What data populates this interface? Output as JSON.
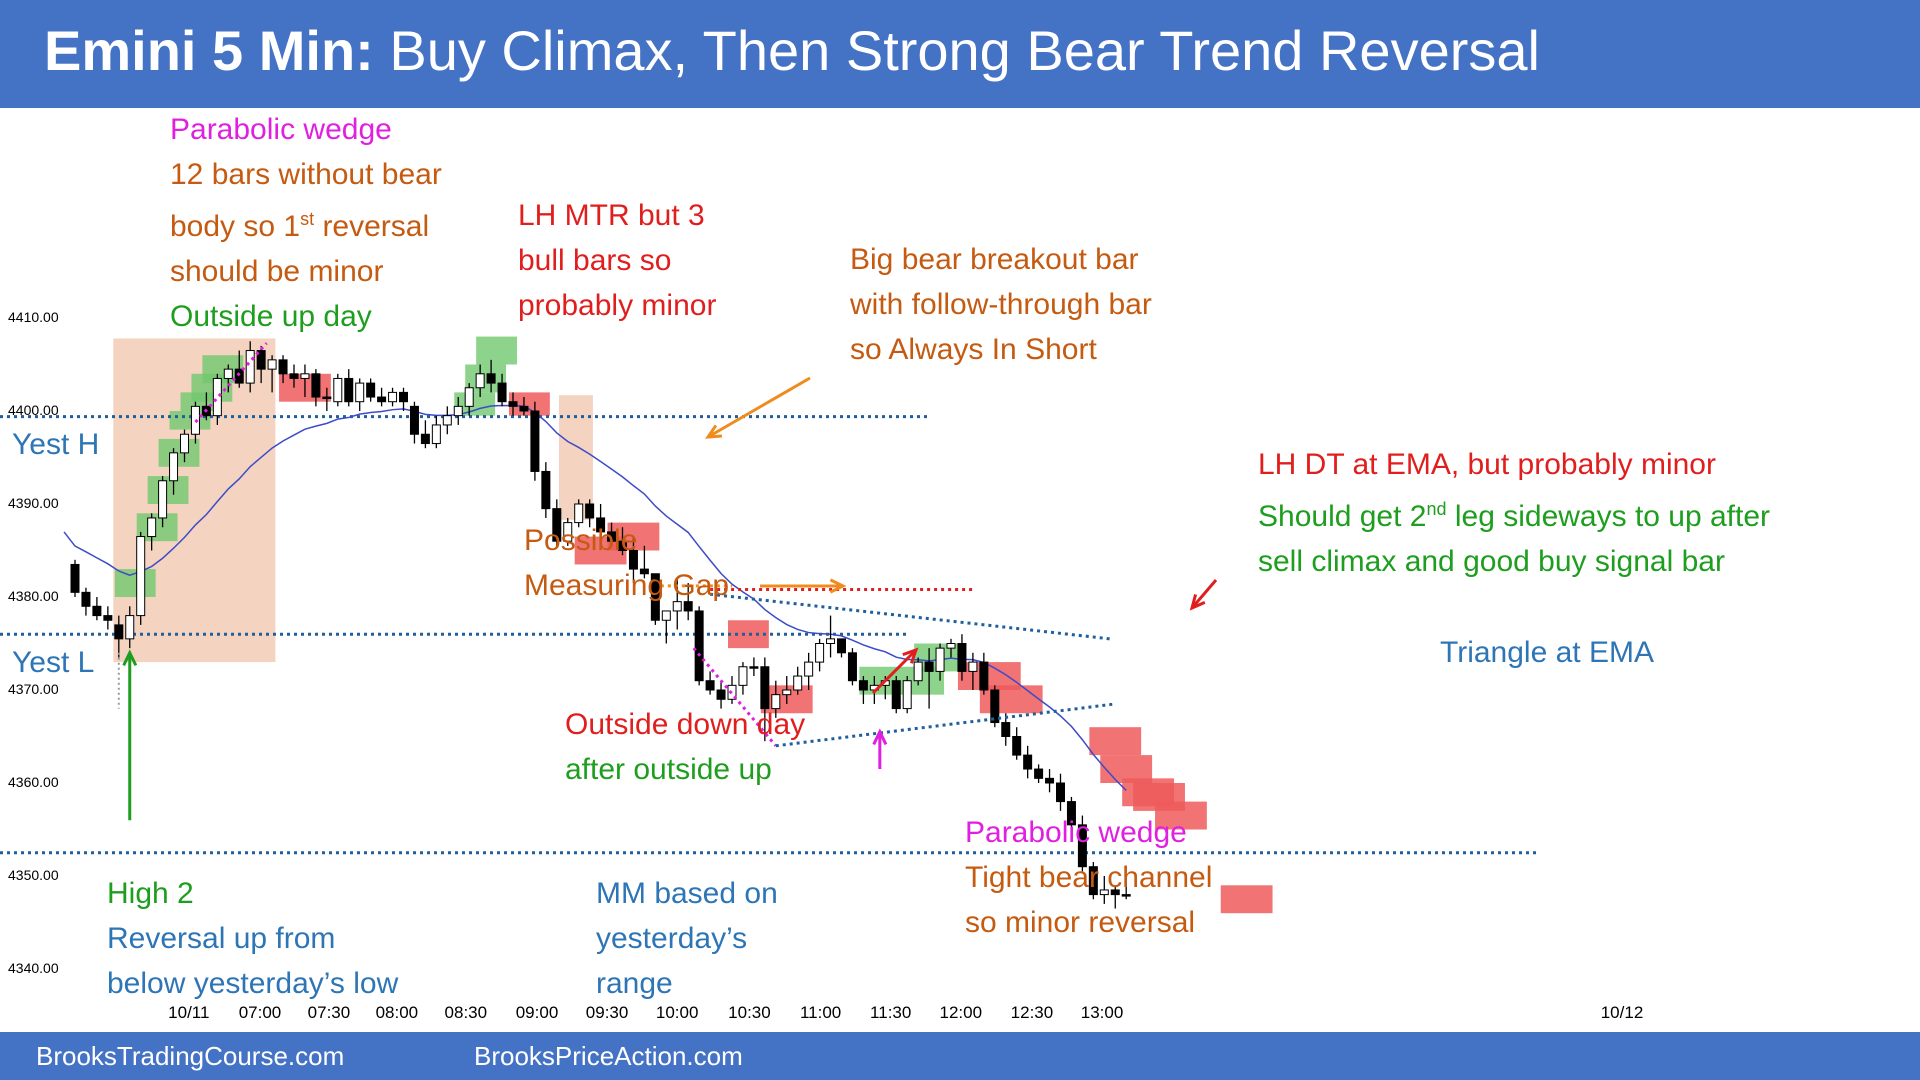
{
  "header": {
    "title_bold": "Emini 5 Min:",
    "title_rest": "Buy Climax, Then Strong Bear Trend Reversal"
  },
  "footer": {
    "left": "BrooksTradingCourse.com",
    "right": "BrooksPriceAction.com"
  },
  "levels": {
    "yest_h": "Yest H",
    "yest_l": "Yest L"
  },
  "colors": {
    "header_bg": "#4472c4",
    "bull_box": "#70c86e",
    "bear_box": "#ee5a5a",
    "climax_zone": "#f4d4c0",
    "ema": "#3c4cc8",
    "level_line": "#1f5f9a",
    "magenta": "#e020e0",
    "orange": "#f08c1e",
    "red": "#e01e1e",
    "green": "#1e9e1e",
    "blue_text": "#2e75b6",
    "brown_text": "#c55a11"
  },
  "annotations": {
    "parabolic_top": {
      "l1": "Parabolic wedge",
      "l2": "12 bars without bear",
      "l3a": "body so 1",
      "l3sup": "st",
      "l3b": " reversal",
      "l4": "should be minor",
      "l5": "Outside up day"
    },
    "lh_mtr": {
      "l1": "LH MTR but 3",
      "l2": "bull bars so",
      "l3": "probably minor"
    },
    "big_bear": {
      "l1": "Big bear breakout bar",
      "l2": "with follow-through bar",
      "l3": "so Always In Short"
    },
    "lh_dt": {
      "l1": "LH DT at EMA, but probably minor",
      "l2a": "Should get 2",
      "l2sup": "nd",
      "l2b": " leg sideways to up after",
      "l3": "sell climax and good buy signal bar"
    },
    "measuring_gap": {
      "l1": "Possible",
      "l2": "Measuring Gap"
    },
    "triangle": "Triangle at EMA",
    "outside_down": {
      "l1": "Outside down day",
      "l2": "after outside up"
    },
    "parabolic_bottom": {
      "l1": "Parabolic wedge",
      "l2": "Tight bear channel",
      "l3": "so minor reversal"
    },
    "high2": {
      "l1": "High 2",
      "l2": "Reversal up from",
      "l3": "below yesterday’s low"
    },
    "mm": {
      "l1": "MM based on",
      "l2": "yesterday’s",
      "l3": "range"
    }
  },
  "chart_data": {
    "type": "candlestick",
    "title": "Emini 5 Min: Buy Climax, Then Strong Bear Trend Reversal",
    "y_ticks": [
      "4410.00",
      "4400.00",
      "4390.00",
      "4380.00",
      "4370.00",
      "4360.00",
      "4350.00",
      "4340.00"
    ],
    "ylim": [
      4336,
      4418
    ],
    "x_ticks": [
      "10/11",
      "07:00",
      "07:30",
      "08:00",
      "08:30",
      "09:00",
      "09:30",
      "10:00",
      "10:30",
      "11:00",
      "11:30",
      "12:00",
      "12:30",
      "13:00",
      "10/12"
    ],
    "levels": {
      "yesterday_high": 4399.4,
      "yesterday_low": 4376.0,
      "measured_move": 4352.5
    },
    "ohlc": [
      [
        4383.5,
        4384,
        4380,
        4380.5
      ],
      [
        4380.5,
        4381,
        4378,
        4379
      ],
      [
        4379,
        4380,
        4377.5,
        4378
      ],
      [
        4378,
        4379,
        4376.5,
        4377.5
      ],
      [
        4377,
        4378,
        4373.5,
        4375.5
      ],
      [
        4375.5,
        4379,
        4374.5,
        4378
      ],
      [
        4378,
        4387,
        4377,
        4386.5
      ],
      [
        4386.5,
        4389,
        4385,
        4388.5
      ],
      [
        4388.5,
        4393,
        4387.5,
        4392.5
      ],
      [
        4392.5,
        4396,
        4391,
        4395.5
      ],
      [
        4395.5,
        4398,
        4394.5,
        4397.5
      ],
      [
        4397.5,
        4401,
        4396.5,
        4400.5
      ],
      [
        4400.5,
        4402,
        4399,
        4399.5
      ],
      [
        4399.5,
        4404,
        4398.5,
        4403.5
      ],
      [
        4403.5,
        4405,
        4402,
        4404.5
      ],
      [
        4404.5,
        4406.5,
        4402.5,
        4403
      ],
      [
        4403,
        4407.5,
        4402,
        4406.5
      ],
      [
        4406.5,
        4407,
        4403,
        4404.5
      ],
      [
        4404.5,
        4406,
        4402,
        4405.5
      ],
      [
        4405.5,
        4406,
        4403,
        4404
      ],
      [
        4404,
        4405,
        4402.5,
        4403.5
      ],
      [
        4403.5,
        4405,
        4401.5,
        4404
      ],
      [
        4404,
        4404.5,
        4400.5,
        4401.5
      ],
      [
        4401.5,
        4402.5,
        4400,
        4401.5
      ],
      [
        4401,
        4404,
        4400.5,
        4403.5
      ],
      [
        4403.5,
        4404.5,
        4400.5,
        4401
      ],
      [
        4401,
        4403.5,
        4400,
        4403
      ],
      [
        4403,
        4403.5,
        4401,
        4401.5
      ],
      [
        4401.5,
        4402.5,
        4400.5,
        4401
      ],
      [
        4401,
        4402.5,
        4400.5,
        4402
      ],
      [
        4402,
        4402.5,
        4400,
        4401
      ],
      [
        4400.5,
        4401,
        4396.5,
        4397.5
      ],
      [
        4397.5,
        4399,
        4396,
        4396.5
      ],
      [
        4396.5,
        4399.5,
        4396,
        4398.5
      ],
      [
        4398.5,
        4400.5,
        4397.5,
        4399.5
      ],
      [
        4399.5,
        4401.5,
        4398.5,
        4400.5
      ],
      [
        4400.5,
        4403,
        4399.5,
        4402.5
      ],
      [
        4402.5,
        4405,
        4401.5,
        4404
      ],
      [
        4404,
        4405.5,
        4402,
        4403
      ],
      [
        4403,
        4404,
        4400.5,
        4401
      ],
      [
        4401,
        4402,
        4399.5,
        4400.5
      ],
      [
        4400.5,
        4401.5,
        4399.5,
        4400
      ],
      [
        4400,
        4401,
        4392.5,
        4393.5
      ],
      [
        4393.5,
        4394.5,
        4388.5,
        4389.5
      ],
      [
        4389.5,
        4390.5,
        4385.5,
        4386
      ],
      [
        4386,
        4388.5,
        4385.5,
        4388
      ],
      [
        4388,
        4390.5,
        4387.5,
        4390
      ],
      [
        4390,
        4390.5,
        4387.5,
        4388.5
      ],
      [
        4388.5,
        4390,
        4386.5,
        4387
      ],
      [
        4387,
        4388,
        4385.5,
        4386
      ],
      [
        4386,
        4387.5,
        4384.5,
        4385
      ],
      [
        4385,
        4386.5,
        4381.5,
        4383
      ],
      [
        4383,
        4385.5,
        4382,
        4382.5
      ],
      [
        4382.5,
        4382,
        4377,
        4377.5
      ],
      [
        4377.5,
        4378.5,
        4375,
        4378.5
      ],
      [
        4378.5,
        4382,
        4376.5,
        4379.5
      ],
      [
        4379.5,
        4381.5,
        4377.5,
        4378.5
      ],
      [
        4378.5,
        4379,
        4370.5,
        4371
      ],
      [
        4371,
        4372,
        4369.5,
        4370
      ],
      [
        4370,
        4371,
        4368,
        4369
      ],
      [
        4369,
        4371.5,
        4368.5,
        4370.5
      ],
      [
        4370.5,
        4373,
        4369.5,
        4372.5
      ],
      [
        4372.5,
        4373.5,
        4371.5,
        4372.5
      ],
      [
        4372.5,
        4373.5,
        4364.5,
        4368
      ],
      [
        4368,
        4371,
        4367,
        4369.5
      ],
      [
        4369.5,
        4371.5,
        4368.5,
        4370
      ],
      [
        4370,
        4372.5,
        4369.5,
        4371.5
      ],
      [
        4371.5,
        4374,
        4370,
        4373
      ],
      [
        4373,
        4375.5,
        4372,
        4375
      ],
      [
        4375,
        4378,
        4373.5,
        4375.5
      ],
      [
        4375.5,
        4375.5,
        4373.5,
        4374
      ],
      [
        4374,
        4374.5,
        4370.5,
        4371
      ],
      [
        4371,
        4371.5,
        4368.5,
        4370
      ],
      [
        4370,
        4371.5,
        4368.5,
        4370.5
      ],
      [
        4370.5,
        4371.5,
        4369,
        4371
      ],
      [
        4371,
        4371.5,
        4367.5,
        4368
      ],
      [
        4368,
        4371.5,
        4367.5,
        4371
      ],
      [
        4371,
        4373.5,
        4370.5,
        4373
      ],
      [
        4373,
        4374.5,
        4368,
        4372
      ],
      [
        4372,
        4375,
        4371,
        4374.5
      ],
      [
        4374.5,
        4375.5,
        4373.5,
        4375
      ],
      [
        4375,
        4376,
        4371,
        4372
      ],
      [
        4372,
        4374,
        4370,
        4373
      ],
      [
        4373,
        4374,
        4369.5,
        4370
      ],
      [
        4370,
        4370.5,
        4366,
        4366.5
      ],
      [
        4366.5,
        4367.5,
        4364,
        4365
      ],
      [
        4365,
        4366,
        4362.5,
        4363
      ],
      [
        4363,
        4364,
        4360.5,
        4361.5
      ],
      [
        4361.5,
        4362,
        4360,
        4360.5
      ],
      [
        4360.5,
        4361.5,
        4359,
        4360
      ],
      [
        4360,
        4361,
        4357,
        4358
      ],
      [
        4358,
        4358.5,
        4355,
        4355.5
      ],
      [
        4355.5,
        4356.5,
        4350.5,
        4351
      ],
      [
        4351,
        4351.5,
        4347.5,
        4348
      ],
      [
        4348,
        4350,
        4347,
        4348.5
      ],
      [
        4348.5,
        4349,
        4346.5,
        4348
      ],
      [
        4348,
        4350,
        4347.5,
        4348
      ]
    ]
  }
}
